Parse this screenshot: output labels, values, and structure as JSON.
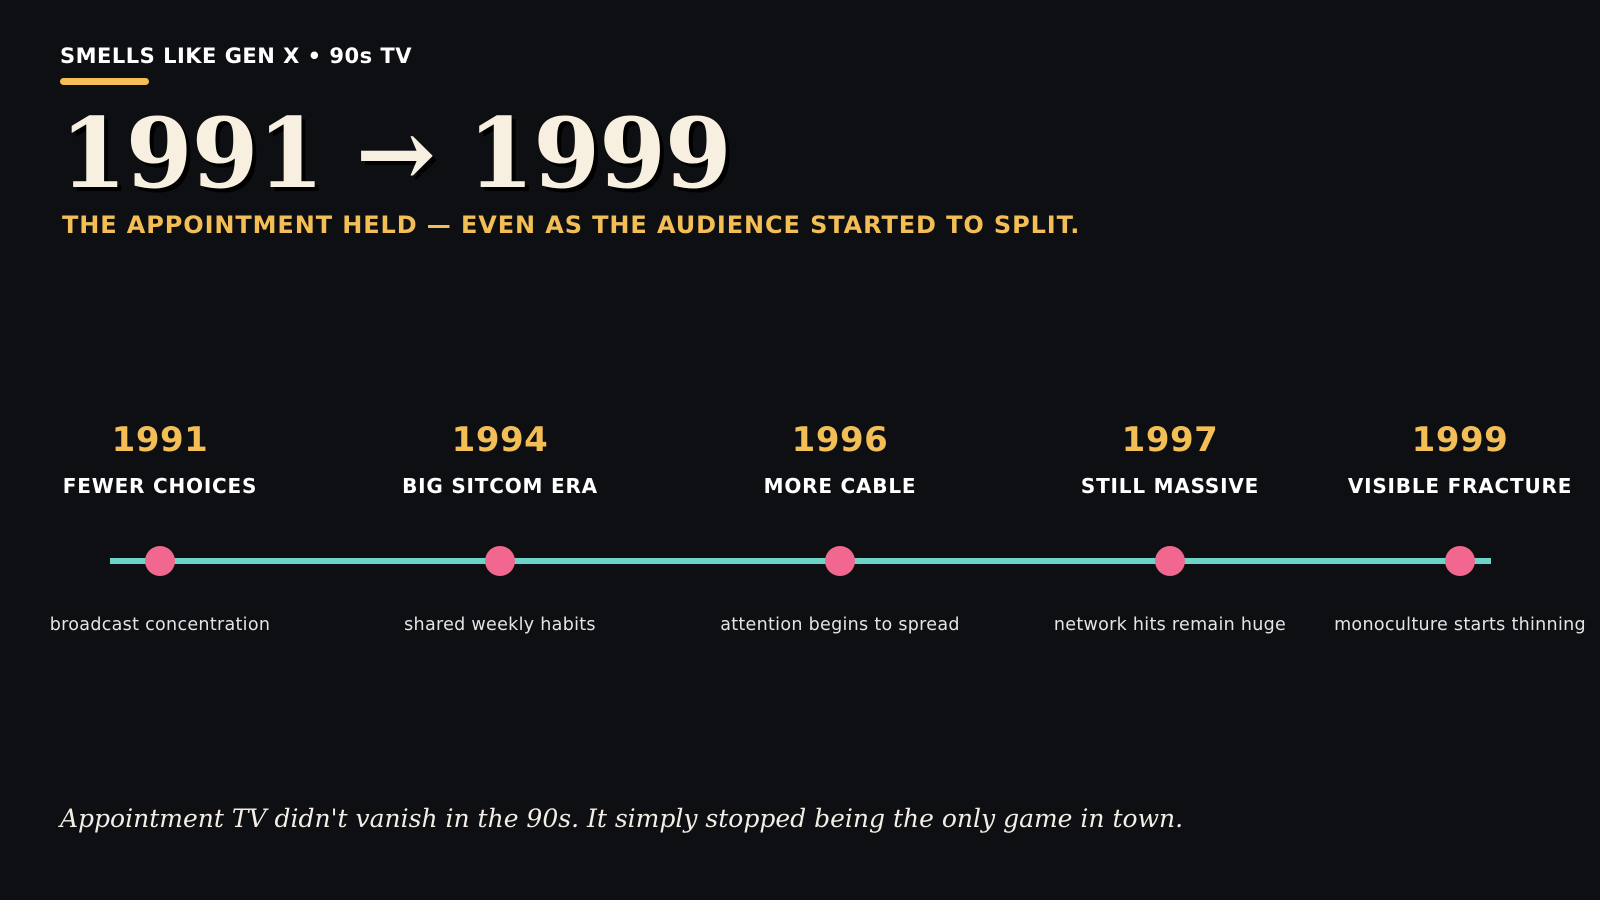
{
  "header": {
    "kicker": "SMELLS LIKE GEN X • 90s TV",
    "headline": "1991 → 1999",
    "subhead": "THE APPOINTMENT HELD — EVEN AS THE AUDIENCE STARTED TO SPLIT."
  },
  "timeline": {
    "milestones": [
      {
        "year": "1991",
        "label": "FEWER CHOICES",
        "note": "broadcast concentration"
      },
      {
        "year": "1994",
        "label": "BIG SITCOM ERA",
        "note": "shared weekly habits"
      },
      {
        "year": "1996",
        "label": "MORE CABLE",
        "note": "attention begins to spread"
      },
      {
        "year": "1997",
        "label": "STILL MASSIVE",
        "note": "network hits remain huge"
      },
      {
        "year": "1999",
        "label": "VISIBLE FRACTURE",
        "note": "monoculture starts thinning"
      }
    ]
  },
  "footer": {
    "quote": "Appointment TV didn't vanish in the 90s. It simply stopped being the only game in town."
  },
  "colors": {
    "background": "#0e0f12",
    "accent_gold": "#f2be55",
    "accent_teal": "#6dd4c9",
    "accent_pink": "#f2678f",
    "headline_cream": "#f7f0e1"
  }
}
